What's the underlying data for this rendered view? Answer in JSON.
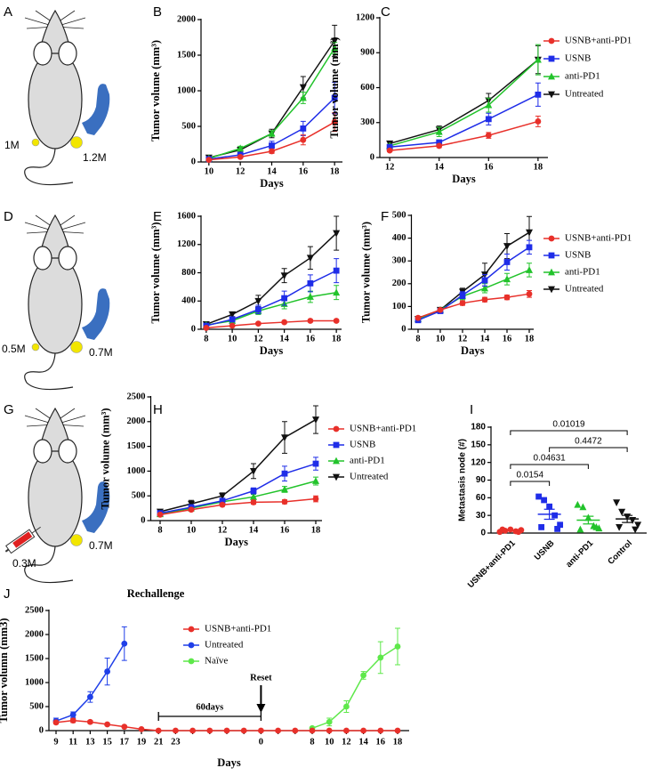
{
  "diagrams": [
    {
      "panel": "A",
      "labels": [
        "1M",
        "1.2M"
      ]
    },
    {
      "panel": "D",
      "labels": [
        "0.5M",
        "0.7M"
      ]
    },
    {
      "panel": "G",
      "labels": [
        "0.7M",
        "0.3M"
      ]
    }
  ],
  "chart_data": [
    {
      "type": "line",
      "panel": "B",
      "x": [
        10,
        12,
        14,
        16,
        18
      ],
      "xlim": [
        9.5,
        18.5
      ],
      "xticks": [
        10,
        12,
        14,
        16,
        18
      ],
      "ylim": [
        0,
        2000
      ],
      "yticks": [
        0,
        500,
        1000,
        1500,
        2000
      ],
      "xlabel": "Days",
      "ylabel": "Tumor volume (mm³)",
      "series": [
        {
          "color": "#e8302a",
          "marker": "circle",
          "values": [
            30,
            70,
            150,
            310,
            560
          ],
          "errors": [
            5,
            15,
            30,
            70,
            130
          ]
        },
        {
          "color": "#1f2de8",
          "marker": "square",
          "values": [
            40,
            100,
            230,
            470,
            900
          ],
          "errors": [
            10,
            20,
            60,
            100,
            220
          ]
        },
        {
          "color": "#22c32b",
          "marker": "triangle",
          "values": [
            50,
            190,
            400,
            900,
            1600
          ],
          "errors": [
            10,
            30,
            40,
            80,
            80
          ]
        },
        {
          "color": "#111111",
          "marker": "triangle-down",
          "values": [
            60,
            170,
            400,
            1050,
            1700
          ],
          "errors": [
            10,
            20,
            60,
            150,
            220
          ]
        }
      ]
    },
    {
      "type": "line",
      "panel": "C",
      "x": [
        12,
        14,
        16,
        18
      ],
      "xlim": [
        11.6,
        18.4
      ],
      "xticks": [
        12,
        14,
        16,
        18
      ],
      "ylim": [
        0,
        1200
      ],
      "yticks": [
        0,
        300,
        600,
        900,
        1200
      ],
      "xlabel": "Days",
      "ylabel": "Tumor volume (mm³)",
      "legend": "right",
      "series": [
        {
          "name": "USNB+anti-PD1",
          "color": "#e8302a",
          "marker": "circle",
          "values": [
            60,
            100,
            190,
            310
          ],
          "errors": [
            10,
            15,
            25,
            45
          ]
        },
        {
          "name": "USNB",
          "color": "#1f2de8",
          "marker": "square",
          "values": [
            90,
            130,
            330,
            540
          ],
          "errors": [
            10,
            15,
            50,
            100
          ]
        },
        {
          "name": "anti-PD1",
          "color": "#22c32b",
          "marker": "triangle",
          "values": [
            100,
            220,
            450,
            840
          ],
          "errors": [
            15,
            40,
            60,
            130
          ]
        },
        {
          "name": "Untreated",
          "color": "#111111",
          "marker": "triangle-down",
          "values": [
            120,
            240,
            490,
            840
          ],
          "errors": [
            15,
            30,
            60,
            120
          ]
        }
      ]
    },
    {
      "type": "line",
      "panel": "E",
      "x": [
        8,
        10,
        12,
        14,
        16,
        18
      ],
      "xlim": [
        7.6,
        18.4
      ],
      "xticks": [
        8,
        10,
        12,
        14,
        16,
        18
      ],
      "ylim": [
        0,
        1600
      ],
      "yticks": [
        0,
        400,
        800,
        1200,
        1600
      ],
      "xlabel": "Days",
      "ylabel": "Tumor volume (mm³)",
      "series": [
        {
          "color": "#e8302a",
          "marker": "circle",
          "values": [
            20,
            50,
            80,
            100,
            120,
            120
          ],
          "errors": [
            5,
            10,
            10,
            10,
            15,
            15
          ]
        },
        {
          "color": "#1f2de8",
          "marker": "square",
          "values": [
            50,
            140,
            280,
            440,
            650,
            830
          ],
          "errors": [
            10,
            30,
            60,
            100,
            120,
            170
          ]
        },
        {
          "color": "#22c32b",
          "marker": "triangle",
          "values": [
            60,
            120,
            260,
            360,
            460,
            520
          ],
          "errors": [
            10,
            20,
            50,
            70,
            80,
            100
          ]
        },
        {
          "color": "#111111",
          "marker": "triangle-down",
          "values": [
            70,
            210,
            400,
            760,
            1010,
            1360
          ],
          "errors": [
            10,
            30,
            80,
            100,
            160,
            240
          ]
        }
      ]
    },
    {
      "type": "line",
      "panel": "F",
      "x": [
        8,
        10,
        12,
        14,
        16,
        18
      ],
      "xlim": [
        7.4,
        18.4
      ],
      "xticks": [
        8,
        10,
        12,
        14,
        16,
        18
      ],
      "ylim": [
        0,
        500
      ],
      "yticks": [
        0,
        100,
        200,
        300,
        400,
        500
      ],
      "xlabel": "Days",
      "ylabel": "Tumor volume (mm³)",
      "legend": "right",
      "series": [
        {
          "name": "USNB+anti-PD1",
          "color": "#e8302a",
          "marker": "circle",
          "values": [
            50,
            85,
            115,
            130,
            140,
            155
          ],
          "errors": [
            5,
            5,
            10,
            10,
            10,
            15
          ]
        },
        {
          "name": "USNB",
          "color": "#1f2de8",
          "marker": "square",
          "values": [
            40,
            80,
            150,
            215,
            295,
            360
          ],
          "errors": [
            5,
            5,
            15,
            25,
            35,
            30
          ]
        },
        {
          "name": "anti-PD1",
          "color": "#22c32b",
          "marker": "triangle",
          "values": [
            45,
            85,
            145,
            180,
            220,
            260
          ],
          "errors": [
            5,
            5,
            15,
            20,
            25,
            30
          ]
        },
        {
          "name": "Untreated",
          "color": "#111111",
          "marker": "triangle-down",
          "values": [
            45,
            85,
            165,
            240,
            365,
            425
          ],
          "errors": [
            5,
            5,
            15,
            50,
            55,
            70
          ]
        }
      ]
    },
    {
      "type": "line",
      "panel": "H",
      "x": [
        8,
        10,
        12,
        14,
        16,
        18
      ],
      "xlim": [
        7.4,
        18.4
      ],
      "xticks": [
        8,
        10,
        12,
        14,
        16,
        18
      ],
      "ylim": [
        0,
        2500
      ],
      "yticks": [
        0,
        500,
        1000,
        1500,
        2000,
        2500
      ],
      "xlabel": "Days",
      "ylabel": "Tumor volume (mm³)",
      "legend": "right",
      "series": [
        {
          "name": "USNB+anti-PD1",
          "color": "#e8302a",
          "marker": "circle",
          "values": [
            120,
            220,
            320,
            370,
            380,
            440
          ],
          "errors": [
            20,
            30,
            30,
            40,
            40,
            60
          ]
        },
        {
          "name": "USNB",
          "color": "#1f2de8",
          "marker": "square",
          "values": [
            150,
            270,
            400,
            600,
            950,
            1150
          ],
          "errors": [
            20,
            40,
            50,
            60,
            150,
            130
          ]
        },
        {
          "name": "anti-PD1",
          "color": "#22c32b",
          "marker": "triangle",
          "values": [
            130,
            250,
            380,
            480,
            630,
            800
          ],
          "errors": [
            20,
            30,
            40,
            50,
            60,
            80
          ]
        },
        {
          "name": "Untreated",
          "color": "#111111",
          "marker": "triangle-down",
          "values": [
            180,
            340,
            500,
            1000,
            1680,
            2040
          ],
          "errors": [
            30,
            70,
            60,
            150,
            320,
            280
          ]
        }
      ]
    },
    {
      "type": "strip",
      "panel": "I",
      "categories": [
        "USNB+anti-PD1",
        "USNB",
        "anti-PD1",
        "Control"
      ],
      "colors": [
        "#e8302a",
        "#1f2de8",
        "#22c32b",
        "#111111"
      ],
      "markers": [
        "circle",
        "square",
        "triangle",
        "triangle-down"
      ],
      "values": [
        [
          2,
          4,
          6,
          3,
          5,
          6,
          2
        ],
        [
          62,
          56,
          45,
          30,
          14,
          10,
          7
        ],
        [
          48,
          44,
          26,
          12,
          8,
          6,
          10
        ],
        [
          52,
          36,
          28,
          22,
          14,
          10,
          6
        ]
      ],
      "means": [
        4,
        32,
        22,
        24
      ],
      "sems": [
        0.6,
        8.5,
        6.5,
        6
      ],
      "ylim": [
        0,
        180
      ],
      "yticks": [
        0,
        30,
        60,
        90,
        120,
        150,
        180
      ],
      "ylabel": "Metastasis node (#)",
      "comparisons": [
        {
          "groups": [
            0,
            1
          ],
          "label": "0.0154"
        },
        {
          "groups": [
            0,
            2
          ],
          "label": "0.04631"
        },
        {
          "groups": [
            1,
            3
          ],
          "label": "0.4472"
        },
        {
          "groups": [
            0,
            3
          ],
          "label": "0.01019"
        }
      ]
    },
    {
      "type": "line",
      "panel": "J",
      "title": "Rechallenge",
      "categories": [
        "9",
        "11",
        "13",
        "15",
        "17",
        "19",
        "21",
        "23",
        null,
        null,
        null,
        null,
        "0",
        null,
        null,
        "8",
        "10",
        "12",
        "14",
        "16",
        "18"
      ],
      "ylim": [
        0,
        2500
      ],
      "yticks": [
        0,
        500,
        1000,
        1500,
        2000,
        2500
      ],
      "xlabel": "Days",
      "ylabel": "Tumor volumn (mm3)",
      "legend": "upper left",
      "annotations": [
        "60days",
        "Reset"
      ],
      "series": [
        {
          "name": "USNB+anti-PD1",
          "color": "#e8302a",
          "marker": "circle",
          "values": [
            170,
            210,
            180,
            130,
            80,
            30,
            0,
            0,
            0,
            0,
            0,
            0,
            0,
            0,
            0,
            0,
            0,
            0,
            0,
            0,
            0
          ],
          "errors": [
            30,
            40,
            30,
            20,
            15,
            null,
            null,
            null,
            null,
            null,
            null,
            null,
            null,
            null,
            null,
            null,
            null,
            null,
            null,
            null,
            null
          ]
        },
        {
          "name": "Untreated",
          "color": "#1f3fe8",
          "marker": "circle",
          "values": [
            200,
            330,
            700,
            1230,
            1810,
            null,
            null,
            null,
            null,
            null,
            null,
            null,
            null,
            null,
            null,
            null,
            null,
            null,
            null,
            null,
            null
          ],
          "errors": [
            60,
            60,
            110,
            280,
            350,
            null,
            null,
            null,
            null,
            null,
            null,
            null,
            null,
            null,
            null,
            null,
            null,
            null,
            null,
            null,
            null
          ]
        },
        {
          "name": "Naïve",
          "color": "#5ee84a",
          "marker": "circle",
          "values": [
            null,
            null,
            null,
            null,
            null,
            null,
            null,
            null,
            null,
            null,
            null,
            null,
            null,
            null,
            null,
            50,
            180,
            500,
            1150,
            1520,
            1750
          ],
          "errors": [
            null,
            null,
            null,
            null,
            null,
            null,
            null,
            null,
            null,
            null,
            null,
            null,
            null,
            null,
            null,
            20,
            80,
            120,
            80,
            330,
            380
          ]
        }
      ]
    }
  ]
}
